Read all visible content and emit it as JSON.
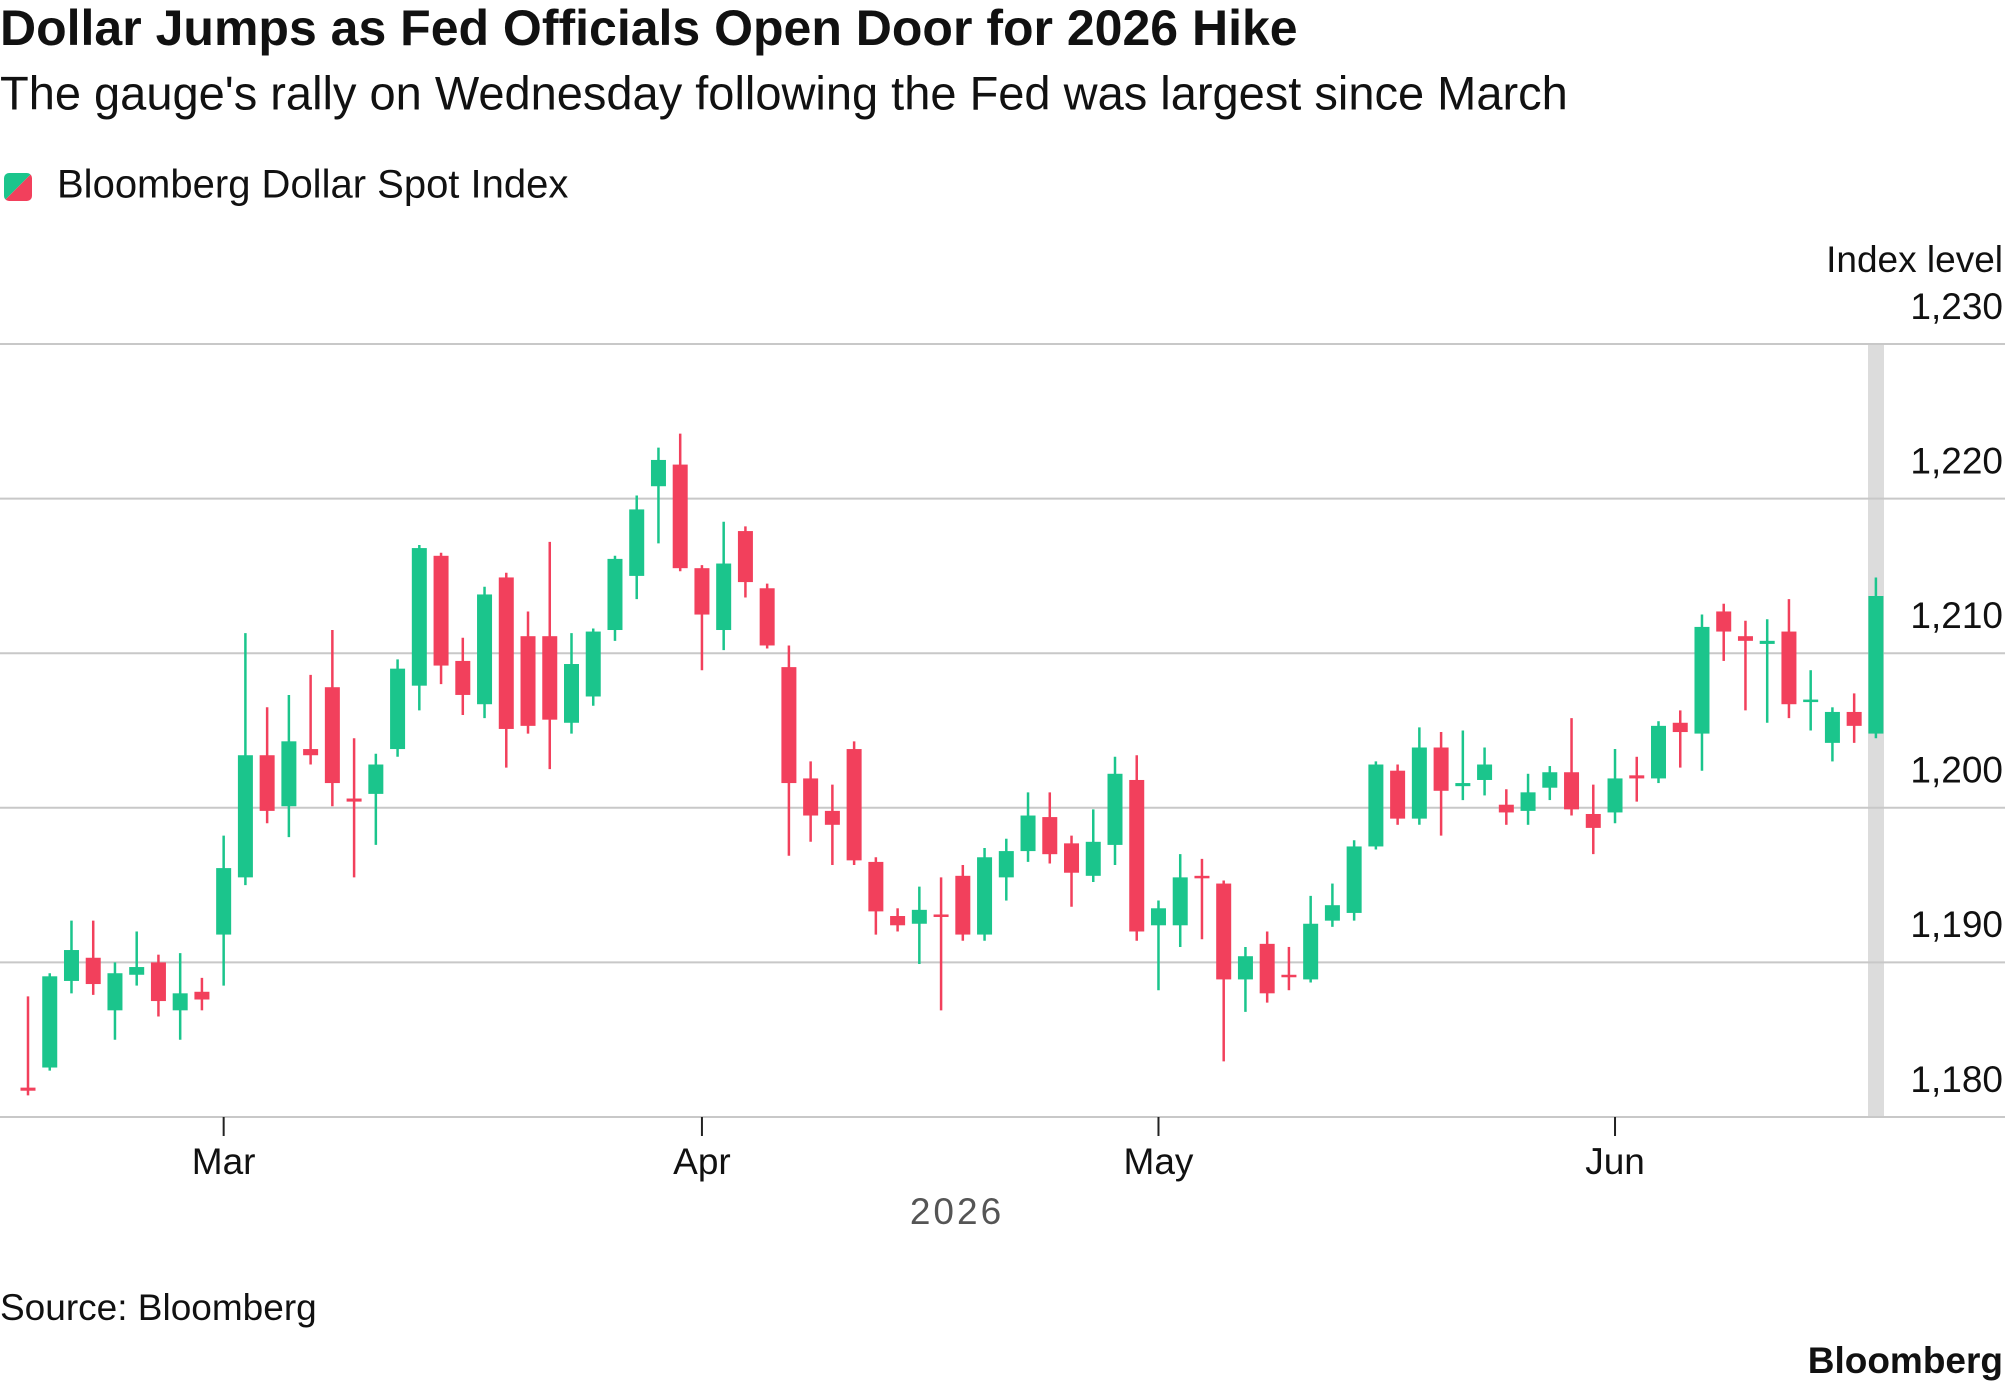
{
  "chart_data": {
    "type": "candlestick",
    "title": "Dollar Jumps as Fed Officials Open Door for 2026 Hike",
    "subtitle": "The gauge's rally on Wednesday following the Fed was largest since March",
    "source": "Source: Bloomberg",
    "brand": "Bloomberg",
    "ylabel": "Index level",
    "xlabel": "2026",
    "up_color": "#1bc58c",
    "down_color": "#f2405c",
    "grid": true,
    "ylim": [
      1180,
      1230
    ],
    "yticks": [
      {
        "value": 1180,
        "label": "1,180"
      },
      {
        "value": 1190,
        "label": "1,190"
      },
      {
        "value": 1200,
        "label": "1,200"
      },
      {
        "value": 1210,
        "label": "1,210"
      },
      {
        "value": 1220,
        "label": "1,220"
      },
      {
        "value": 1230,
        "label": "1,230"
      }
    ],
    "categories": [
      null,
      null,
      null,
      null,
      null,
      null,
      null,
      null,
      null,
      "Mar",
      null,
      null,
      null,
      null,
      null,
      null,
      null,
      null,
      null,
      null,
      null,
      null,
      null,
      null,
      null,
      null,
      null,
      null,
      null,
      null,
      null,
      "Apr",
      null,
      null,
      null,
      null,
      null,
      null,
      null,
      null,
      null,
      null,
      null,
      null,
      null,
      null,
      null,
      null,
      null,
      null,
      null,
      null,
      "May",
      null,
      null,
      null,
      null,
      null,
      null,
      null,
      null,
      null,
      null,
      null,
      null,
      null,
      null,
      null,
      null,
      null,
      null,
      null,
      null,
      "Jun",
      null,
      null,
      null,
      null,
      null,
      null,
      null,
      null,
      null,
      null,
      null,
      null
    ],
    "series": [
      {
        "name": "Bloomberg Dollar Spot Index",
        "open": [
          1181.9,
          1183.2,
          1188.8,
          1190.3,
          1186.9,
          1189.2,
          1190.0,
          1186.9,
          1188.1,
          1191.8,
          1195.5,
          1203.4,
          1200.1,
          1203.8,
          1207.8,
          1200.6,
          1200.9,
          1203.8,
          1207.9,
          1216.3,
          1209.5,
          1206.7,
          1214.9,
          1211.1,
          1211.1,
          1205.5,
          1207.2,
          1211.5,
          1215.0,
          1220.8,
          1222.2,
          1215.5,
          1211.5,
          1217.9,
          1214.2,
          1209.1,
          1201.9,
          1199.8,
          1203.8,
          1196.5,
          1193.0,
          1192.5,
          1193.1,
          1195.6,
          1191.8,
          1195.5,
          1197.2,
          1199.4,
          1197.7,
          1195.6,
          1197.6,
          1201.8,
          1192.4,
          1192.4,
          1195.6,
          1195.1,
          1188.9,
          1191.2,
          1189.2,
          1188.9,
          1192.7,
          1193.2,
          1197.5,
          1202.4,
          1199.3,
          1203.9,
          1201.4,
          1201.8,
          1200.2,
          1199.8,
          1201.3,
          1202.3,
          1199.6,
          1199.7,
          1202.1,
          1201.9,
          1205.5,
          1204.8,
          1212.7,
          1211.1,
          1210.6,
          1211.4,
          1206.9,
          1204.2,
          1206.2,
          1204.8
        ],
        "high": [
          1187.8,
          1189.3,
          1192.7,
          1192.7,
          1190.0,
          1192.0,
          1190.5,
          1190.6,
          1189.0,
          1198.2,
          1211.3,
          1206.5,
          1207.3,
          1208.6,
          1211.5,
          1204.5,
          1203.5,
          1209.6,
          1217.0,
          1216.5,
          1211.0,
          1214.3,
          1215.2,
          1212.7,
          1217.2,
          1211.3,
          1211.6,
          1216.3,
          1220.2,
          1223.3,
          1224.2,
          1215.7,
          1218.5,
          1218.2,
          1214.5,
          1210.5,
          1203.0,
          1201.5,
          1204.3,
          1196.8,
          1193.5,
          1194.9,
          1195.5,
          1196.3,
          1197.4,
          1198.0,
          1201.0,
          1201.0,
          1198.2,
          1199.9,
          1203.3,
          1203.4,
          1194.0,
          1197.0,
          1196.7,
          1195.3,
          1191.0,
          1192.0,
          1191.0,
          1194.3,
          1195.1,
          1197.9,
          1203.0,
          1202.8,
          1205.2,
          1204.9,
          1205.0,
          1203.9,
          1201.2,
          1202.2,
          1202.7,
          1205.8,
          1201.5,
          1203.8,
          1203.3,
          1205.6,
          1206.3,
          1212.5,
          1213.2,
          1212.1,
          1212.2,
          1213.5,
          1208.9,
          1206.5,
          1207.4,
          1214.9
        ],
        "low": [
          1181.4,
          1183.0,
          1188.0,
          1187.9,
          1185.0,
          1188.5,
          1186.5,
          1185.0,
          1186.9,
          1188.5,
          1195.0,
          1199.0,
          1198.1,
          1202.8,
          1200.1,
          1195.5,
          1197.6,
          1203.3,
          1206.3,
          1208.0,
          1206.0,
          1205.8,
          1202.6,
          1204.8,
          1202.5,
          1204.8,
          1206.6,
          1210.8,
          1213.5,
          1217.1,
          1215.3,
          1208.9,
          1210.2,
          1213.6,
          1210.3,
          1196.9,
          1197.8,
          1196.3,
          1196.3,
          1191.8,
          1192.0,
          1189.9,
          1186.9,
          1191.4,
          1191.4,
          1194.0,
          1196.5,
          1196.4,
          1193.6,
          1195.2,
          1196.3,
          1191.4,
          1188.2,
          1191.0,
          1191.5,
          1183.6,
          1186.8,
          1187.4,
          1188.2,
          1188.7,
          1192.3,
          1192.7,
          1197.3,
          1198.9,
          1198.9,
          1198.2,
          1200.5,
          1200.8,
          1198.9,
          1198.9,
          1200.5,
          1199.5,
          1197.0,
          1199.0,
          1200.4,
          1201.6,
          1202.6,
          1202.4,
          1209.5,
          1206.3,
          1205.5,
          1205.8,
          1205.0,
          1203.0,
          1204.2,
          1204.5
        ],
        "close": [
          1181.7,
          1189.1,
          1190.8,
          1188.6,
          1189.3,
          1189.7,
          1187.5,
          1188.0,
          1187.6,
          1196.1,
          1203.4,
          1199.8,
          1204.3,
          1203.4,
          1201.6,
          1200.4,
          1202.8,
          1209.0,
          1216.8,
          1209.2,
          1207.3,
          1213.8,
          1205.1,
          1205.3,
          1205.7,
          1209.3,
          1211.4,
          1216.1,
          1219.3,
          1222.5,
          1215.5,
          1212.5,
          1215.8,
          1214.6,
          1210.5,
          1201.6,
          1199.5,
          1198.9,
          1196.6,
          1193.3,
          1192.4,
          1193.4,
          1193.0,
          1191.8,
          1196.8,
          1197.2,
          1199.5,
          1197.0,
          1195.8,
          1197.8,
          1202.2,
          1192.0,
          1193.5,
          1195.5,
          1195.5,
          1188.9,
          1190.4,
          1188.0,
          1189.1,
          1192.5,
          1193.7,
          1197.5,
          1202.8,
          1199.3,
          1203.9,
          1201.1,
          1201.6,
          1202.8,
          1199.7,
          1201.0,
          1202.3,
          1199.9,
          1198.7,
          1201.9,
          1201.9,
          1205.3,
          1204.9,
          1211.7,
          1211.4,
          1210.8,
          1210.8,
          1206.7,
          1207.0,
          1206.2,
          1205.3,
          1213.7
        ]
      }
    ]
  }
}
